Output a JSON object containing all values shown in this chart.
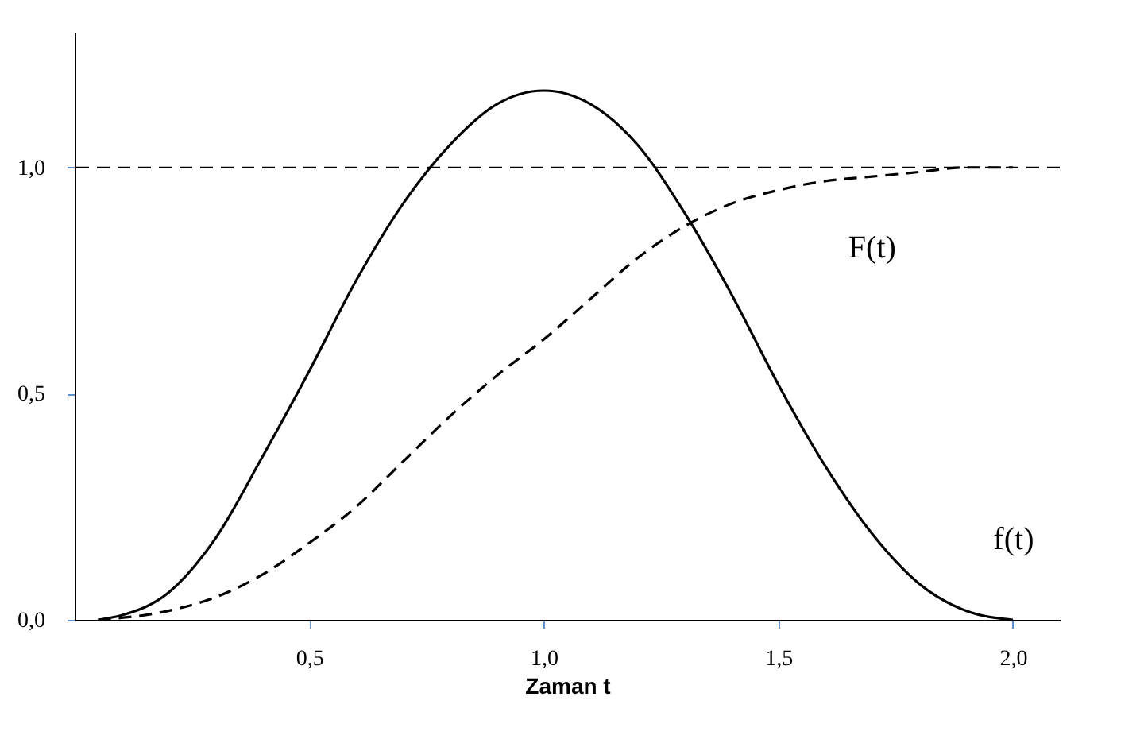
{
  "chart_data": {
    "type": "line",
    "xlabel": "Zaman t",
    "xlim": [
      0,
      2.1
    ],
    "ylim": [
      0,
      1.3
    ],
    "xticks": [
      {
        "value": 0.5,
        "label": "0,5"
      },
      {
        "value": 1.0,
        "label": "1,0"
      },
      {
        "value": 1.5,
        "label": "1,5"
      },
      {
        "value": 2.0,
        "label": "2,0"
      }
    ],
    "yticks": [
      {
        "value": 0,
        "label": "0,0"
      },
      {
        "value": 0.5,
        "label": "0,5"
      },
      {
        "value": 1.0,
        "label": "1,0"
      }
    ],
    "grid": false,
    "marker": "none",
    "series": [
      {
        "name": "f(t)",
        "color": "#000000",
        "line_style": "solid",
        "x": [
          0.05,
          0.1,
          0.2,
          0.3,
          0.4,
          0.5,
          0.6,
          0.7,
          0.8,
          0.9,
          1.0,
          1.1,
          1.2,
          1.3,
          1.4,
          1.5,
          1.6,
          1.7,
          1.8,
          1.9,
          2.0
        ],
        "values": [
          0,
          0.01,
          0.06,
          0.18,
          0.36,
          0.55,
          0.75,
          0.92,
          1.05,
          1.14,
          1.17,
          1.14,
          1.05,
          0.9,
          0.72,
          0.52,
          0.34,
          0.19,
          0.08,
          0.02,
          0
        ]
      },
      {
        "name": "F(t)",
        "color": "#000000",
        "line_style": "dashed",
        "x": [
          0.05,
          0.2,
          0.3,
          0.4,
          0.5,
          0.6,
          0.7,
          0.8,
          0.9,
          1.0,
          1.1,
          1.2,
          1.3,
          1.4,
          1.5,
          1.6,
          1.7,
          1.8,
          1.9,
          2.0
        ],
        "values": [
          0,
          0.02,
          0.05,
          0.1,
          0.17,
          0.25,
          0.35,
          0.45,
          0.54,
          0.62,
          0.71,
          0.8,
          0.87,
          0.92,
          0.95,
          0.97,
          0.98,
          0.99,
          1.0,
          1.0
        ]
      }
    ],
    "ref_lines": [
      {
        "axis": "y",
        "value": 1.0,
        "line_style": "dashed",
        "color": "#000000"
      }
    ]
  }
}
